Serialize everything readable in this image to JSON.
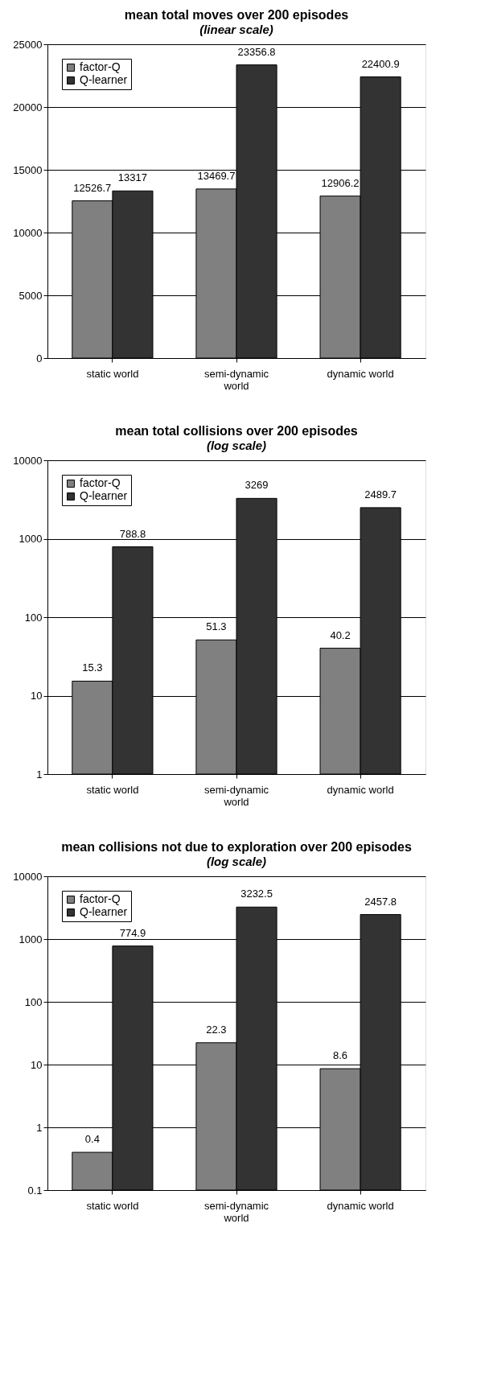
{
  "chart_data": [
    {
      "type": "bar",
      "title": "mean total moves over 200 episodes",
      "subtitle": "(linear scale)",
      "categories": [
        "static world",
        "semi-dynamic world",
        "dynamic world"
      ],
      "series": [
        {
          "name": "factor-Q",
          "color": "#808080",
          "values": [
            12526.7,
            13469.7,
            12906.2
          ]
        },
        {
          "name": "Q-learner",
          "color": "#333333",
          "values": [
            13317,
            23356.8,
            22400.9
          ]
        }
      ],
      "ylim": [
        0,
        25000
      ],
      "yticks": [
        0,
        5000,
        10000,
        15000,
        20000,
        25000
      ],
      "grid": "y",
      "legend": "top left",
      "data_labels": true
    },
    {
      "type": "bar",
      "title": "mean total collisions over 200 episodes",
      "subtitle": "(log scale)",
      "categories": [
        "static world",
        "semi-dynamic world",
        "dynamic world"
      ],
      "series": [
        {
          "name": "factor-Q",
          "color": "#808080",
          "values": [
            15.3,
            51.3,
            40.2
          ]
        },
        {
          "name": "Q-learner",
          "color": "#333333",
          "values": [
            788.8,
            3269,
            2489.7
          ]
        }
      ],
      "ylim": [
        1,
        10000
      ],
      "yticks": [
        1,
        10,
        100,
        1000,
        10000
      ],
      "log": true,
      "grid": "y",
      "legend": "top left",
      "data_labels": true
    },
    {
      "type": "bar",
      "title": "mean collisions not due to exploration over 200 episodes",
      "subtitle": "(log scale)",
      "categories": [
        "static world",
        "semi-dynamic world",
        "dynamic world"
      ],
      "series": [
        {
          "name": "factor-Q",
          "color": "#808080",
          "values": [
            0.4,
            22.3,
            8.6
          ]
        },
        {
          "name": "Q-learner",
          "color": "#333333",
          "values": [
            774.9,
            3232.5,
            2457.8
          ]
        }
      ],
      "ylim": [
        0.1,
        10000
      ],
      "yticks": [
        0.1,
        1,
        10,
        100,
        1000,
        10000
      ],
      "log": true,
      "grid": "y",
      "legend": "top left",
      "data_labels": true
    }
  ]
}
